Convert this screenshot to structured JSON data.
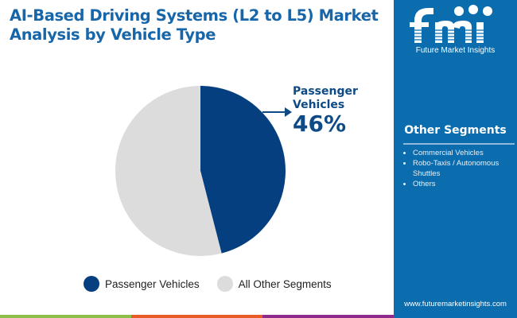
{
  "title_line1": "AI-Based Driving Systems (L2 to L5) Market",
  "title_line2": "Analysis by Vehicle Type",
  "brand": {
    "logo_text": "fmi",
    "name": "Future Market Insights",
    "url": "www.futuremarketinsights.com",
    "panel_color": "#0b6cae"
  },
  "other_segments": {
    "title": "Other Segments",
    "items": [
      "Commercial Vehicles",
      "Robo-Taxis / Autonomous Shuttles",
      "Others"
    ]
  },
  "callout": {
    "label_line1": "Passenger",
    "label_line2": "Vehicles",
    "value": "46%"
  },
  "stripe_colors": [
    "#8cc04a",
    "#e85a26",
    "#8e2a8c"
  ],
  "chart_data": {
    "type": "pie",
    "title": "AI-Based Driving Systems (L2 to L5) Market Analysis by Vehicle Type",
    "start_angle": "12 o'clock, clockwise",
    "slices": [
      {
        "label": "Passenger Vehicles",
        "value": 46,
        "color": "#063f7f"
      },
      {
        "label": "All Other Segments",
        "value": 54,
        "color": "#dcdcdc"
      }
    ],
    "legend_position": "bottom"
  }
}
